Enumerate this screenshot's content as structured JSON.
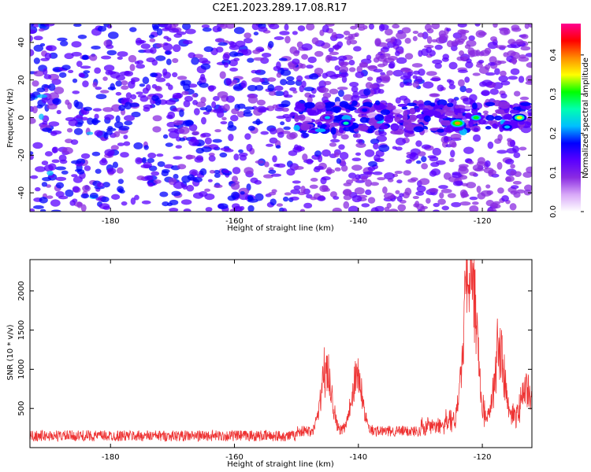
{
  "title": "C2E1.2023.289.17.08.R17",
  "chart_data": [
    {
      "type": "heatmap",
      "xlabel": "Height of straight line (km)",
      "ylabel": "Frequency (Hz)",
      "xlim": [
        -193,
        -112
      ],
      "ylim": [
        -50,
        50
      ],
      "xticks": [
        -180,
        -160,
        -140,
        -120
      ],
      "yticks": [
        -40,
        -20,
        0,
        20,
        40
      ],
      "colorbar": {
        "label": "Normalized spectral amplitude",
        "range": [
          0.0,
          0.48
        ],
        "ticks": [
          0.0,
          0.1,
          0.2,
          0.3,
          0.4
        ],
        "colormap": [
          "#ffffff",
          "#d8a8f8",
          "#8a2be2",
          "#5a00ff",
          "#0000ff",
          "#00bfff",
          "#00ffb0",
          "#00ff00",
          "#ffff00",
          "#ff8c00",
          "#ff0000",
          "#ff0090"
        ]
      },
      "band": {
        "center_hz": 0,
        "width_hz": 8,
        "x_start": -150,
        "x_end": -112
      },
      "hotspots": [
        {
          "x": -145,
          "y": 0,
          "value": 0.2
        },
        {
          "x": -142,
          "y": -3,
          "value": 0.25
        },
        {
          "x": -139,
          "y": 4,
          "value": 0.18
        },
        {
          "x": -124,
          "y": -3,
          "value": 0.4
        },
        {
          "x": -121,
          "y": 0,
          "value": 0.3
        },
        {
          "x": -116,
          "y": -5,
          "value": 0.22
        },
        {
          "x": -114,
          "y": 0,
          "value": 0.35
        }
      ]
    },
    {
      "type": "line",
      "xlabel": "Height of straight line (km)",
      "ylabel": "SNR (10 * v/v)",
      "xlim": [
        -193,
        -112
      ],
      "ylim": [
        0,
        2400
      ],
      "xticks": [
        -180,
        -160,
        -140,
        -120
      ],
      "yticks": [
        500,
        1000,
        1500,
        2000
      ],
      "color": "#ee3333",
      "baseline": 150,
      "peaks": [
        {
          "x": -145.2,
          "y": 1370
        },
        {
          "x": -140.2,
          "y": 1230
        },
        {
          "x": -122.5,
          "y": 1560
        },
        {
          "x": -121.7,
          "y": 2400
        },
        {
          "x": -117.2,
          "y": 1540
        },
        {
          "x": -113.0,
          "y": 750
        }
      ]
    }
  ]
}
